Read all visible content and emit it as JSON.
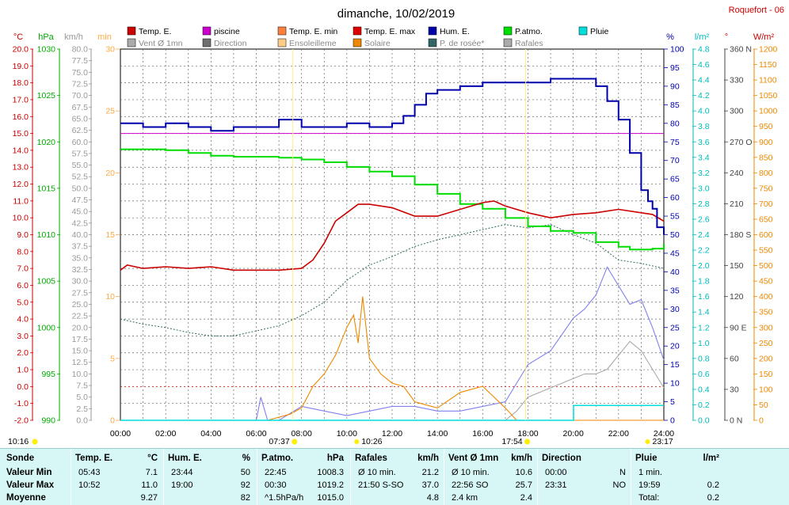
{
  "header": {
    "title": "dimanche, 10/02/2019",
    "station": "Roquefort - 06"
  },
  "colors": {
    "temp": "#cc0000",
    "piscine": "#cc00cc",
    "temp_min": "#ff7f3f",
    "temp_max": "#dd0000",
    "hum": "#0000aa",
    "patm": "#00dd00",
    "pluie": "#00dddd",
    "vent": "#aaaaaa",
    "direction": "#707070",
    "ensoleillement": "#ffcc88",
    "solaire": "#ee8800",
    "rosee": "#336666",
    "rafales": "#8080ee"
  },
  "legend": [
    {
      "label": "Temp. E.",
      "color": "#cc0000"
    },
    {
      "label": "piscine",
      "color": "#cc00cc"
    },
    {
      "label": "Temp. E. min",
      "color": "#ff7f3f"
    },
    {
      "label": "Temp. E. max",
      "color": "#dd0000"
    },
    {
      "label": "Hum. E.",
      "color": "#0000aa"
    },
    {
      "label": "P.atmo.",
      "color": "#00dd00"
    },
    {
      "label": "Pluie",
      "color": "#00dddd"
    },
    {
      "label": "Vent Ø 1mn",
      "color": "#aaaaaa"
    },
    {
      "label": "Direction",
      "color": "#707070"
    },
    {
      "label": "Ensoleilleme",
      "color": "#ffcc88"
    },
    {
      "label": "Solaire",
      "color": "#ee8800"
    },
    {
      "label": "P. de rosée*",
      "color": "#336666"
    },
    {
      "label": "Rafales",
      "color": "#aaaaaa"
    }
  ],
  "chart_data": {
    "type": "line",
    "x_ticks": [
      "00:00",
      "02:00",
      "04:00",
      "06:00",
      "08:00",
      "10:00",
      "12:00",
      "14:00",
      "16:00",
      "18:00",
      "20:00",
      "22:00",
      "24:00"
    ],
    "axes": {
      "temp": {
        "unit": "°C",
        "ticks": [
          "20.0",
          "19.0",
          "18.0",
          "17.0",
          "16.0",
          "15.0",
          "14.0",
          "13.0",
          "12.0",
          "11.0",
          "10.0",
          "9.0",
          "8.0",
          "7.0",
          "6.0",
          "5.0",
          "4.0",
          "3.0",
          "2.0",
          "1.0",
          "0.0",
          "-1.0",
          "-2.0"
        ],
        "ylim": [
          -2,
          20
        ]
      },
      "patm": {
        "unit": "hPa",
        "ticks": [
          "1030",
          "1025",
          "1020",
          "1015",
          "1010",
          "1005",
          "1000",
          "995",
          "990"
        ],
        "ylim": [
          990,
          1030
        ]
      },
      "wind": {
        "unit": "km/h",
        "ticks": [
          "80.0",
          "77.5",
          "75.0",
          "72.5",
          "70.0",
          "67.5",
          "65.0",
          "62.5",
          "60.0",
          "57.5",
          "55.0",
          "52.5",
          "50.0",
          "47.5",
          "45.0",
          "42.5",
          "40.0",
          "37.5",
          "35.0",
          "32.5",
          "30.0",
          "27.5",
          "25.0",
          "22.5",
          "20.0",
          "17.5",
          "15.0",
          "12.5",
          "10.0",
          "7.5",
          "5.0",
          "2.5",
          "0.0"
        ],
        "ylim": [
          0,
          80
        ]
      },
      "min": {
        "unit": "min",
        "ticks": [
          "30",
          "25",
          "20",
          "15",
          "10",
          "5",
          "0"
        ],
        "ylim": [
          0,
          30
        ]
      },
      "hum": {
        "unit": "%",
        "ticks": [
          "100",
          "95",
          "90",
          "85",
          "80",
          "75",
          "70",
          "65",
          "60",
          "55",
          "50",
          "45",
          "40",
          "35",
          "30",
          "25",
          "20",
          "15",
          "10",
          "5",
          "0"
        ],
        "ylim": [
          0,
          100
        ]
      },
      "rain": {
        "unit": "l/m²",
        "ticks": [
          "4.8",
          "4.6",
          "4.4",
          "4.2",
          "4.0",
          "3.8",
          "3.6",
          "3.4",
          "3.2",
          "3.0",
          "2.8",
          "2.6",
          "2.4",
          "2.2",
          "2.0",
          "1.8",
          "1.6",
          "1.4",
          "1.2",
          "1.0",
          "0.8",
          "0.6",
          "0.4",
          "0.2",
          "0.0"
        ],
        "ylim": [
          0,
          5
        ]
      },
      "dir": {
        "unit": "°",
        "ticks": [
          "360 N",
          "330",
          "300",
          "270 O",
          "240",
          "210",
          "180 S",
          "150",
          "120",
          "90 E",
          "60",
          "30",
          "0 N"
        ],
        "ylim": [
          0,
          360
        ]
      },
      "solar": {
        "unit": "W/m²",
        "ticks": [
          "1200",
          "1150",
          "1100",
          "1050",
          "1000",
          "950",
          "900",
          "850",
          "800",
          "750",
          "700",
          "650",
          "600",
          "550",
          "500",
          "450",
          "400",
          "350",
          "300",
          "250",
          "200",
          "150",
          "100",
          "50",
          "0"
        ],
        "ylim": [
          0,
          1200
        ]
      }
    },
    "series": [
      {
        "name": "Temp. E.",
        "x": [
          0,
          0.3,
          1,
          2,
          3,
          4,
          5,
          6,
          7,
          8,
          8.5,
          9,
          9.5,
          10,
          10.5,
          11,
          12,
          13,
          14,
          15,
          16,
          16.5,
          17,
          18,
          19,
          20,
          21,
          22,
          23,
          23.5,
          24
        ],
        "y": [
          6.9,
          7.2,
          7.0,
          7.1,
          7.0,
          7.1,
          6.9,
          6.9,
          6.9,
          7.0,
          7.5,
          8.5,
          9.8,
          10.3,
          10.8,
          10.8,
          10.6,
          10.1,
          10.1,
          10.5,
          10.9,
          11.0,
          10.7,
          10.3,
          10.0,
          10.2,
          10.3,
          10.5,
          10.3,
          10.2,
          9.8
        ]
      },
      {
        "name": "Hum. E.",
        "x": [
          0,
          1,
          2,
          3,
          4,
          5,
          6,
          7,
          8,
          9,
          10,
          11,
          11.5,
          12,
          12.5,
          13,
          13.5,
          14,
          15,
          16,
          17,
          18,
          19,
          20,
          21,
          21.5,
          22,
          22.5,
          23,
          23.3,
          23.5,
          23.7,
          24
        ],
        "y": [
          80,
          79,
          80,
          79,
          78,
          79,
          79,
          81,
          79,
          79,
          80,
          79,
          79,
          80,
          82,
          85,
          88,
          89,
          90,
          91,
          91,
          91,
          92,
          92,
          90,
          86,
          81,
          72,
          62,
          59,
          57,
          52,
          50
        ]
      },
      {
        "name": "P.atmo.",
        "x": [
          0,
          1,
          2,
          3,
          4,
          5,
          6,
          7,
          8,
          9,
          10,
          11,
          12,
          13,
          14,
          15,
          16,
          17,
          18,
          19,
          20,
          21,
          22,
          22.5,
          23,
          23.5,
          24
        ],
        "y": [
          1019.2,
          1019.2,
          1019.1,
          1018.8,
          1018.5,
          1018.4,
          1018.4,
          1018.3,
          1018.1,
          1017.8,
          1017.3,
          1016.8,
          1016.3,
          1015.4,
          1014.4,
          1013.3,
          1012.8,
          1011.8,
          1010.9,
          1010.4,
          1010.2,
          1009.2,
          1008.7,
          1008.4,
          1008.4,
          1008.5,
          1009.0
        ]
      },
      {
        "name": "P. de rosée*",
        "x": [
          0,
          1,
          2,
          3,
          4,
          5,
          6,
          7,
          8,
          9,
          10,
          11,
          12,
          13,
          14,
          15,
          16,
          17,
          18,
          19,
          20,
          21,
          22,
          23,
          24
        ],
        "y": [
          4.0,
          3.7,
          3.5,
          3.2,
          3.0,
          3.0,
          3.3,
          3.6,
          4.2,
          5.0,
          6.3,
          7.2,
          7.7,
          8.3,
          8.7,
          9.0,
          9.3,
          9.6,
          9.4,
          9.6,
          9.0,
          8.5,
          7.5,
          7.3,
          7.0
        ]
      },
      {
        "name": "Solaire",
        "x": [
          0,
          6.5,
          7.5,
          8,
          8.5,
          9,
          9.5,
          10,
          10.3,
          10.5,
          10.7,
          11,
          11.5,
          12,
          12.5,
          13,
          14,
          15,
          16,
          17,
          17.5,
          18,
          24
        ],
        "y": [
          0,
          0,
          20,
          40,
          110,
          150,
          210,
          300,
          340,
          250,
          400,
          200,
          150,
          120,
          110,
          60,
          40,
          90,
          110,
          40,
          0,
          0,
          0
        ]
      },
      {
        "name": "Rafales",
        "x": [
          0,
          6,
          6.2,
          6.5,
          7,
          8,
          9,
          10,
          11,
          12,
          13,
          14,
          15,
          16,
          17,
          17.5,
          18,
          19,
          20,
          20.5,
          21,
          21.5,
          22,
          22.5,
          23,
          23.5,
          24
        ],
        "y": [
          0,
          0,
          5,
          0,
          0,
          3,
          2,
          1,
          2,
          3,
          3,
          2,
          2,
          3,
          4,
          8,
          12,
          15,
          22,
          24,
          27,
          33,
          29,
          25,
          26,
          20,
          13
        ]
      },
      {
        "name": "Vent Ø 1mn",
        "x": [
          0,
          17,
          17.5,
          18,
          19,
          20,
          20.5,
          21,
          21.5,
          22,
          22.5,
          23,
          23.5,
          24
        ],
        "y": [
          0,
          0,
          2,
          5,
          7,
          9,
          10,
          10,
          11,
          14,
          17,
          15,
          11,
          7
        ]
      },
      {
        "name": "Pluie",
        "x": [
          0,
          20,
          20.01,
          24
        ],
        "y": [
          0,
          0,
          0.2,
          0.2
        ]
      },
      {
        "name": "piscine",
        "x": [
          0,
          24
        ],
        "y": [
          15.0,
          15.0
        ]
      }
    ],
    "markers": {
      "sunrise": "07:37",
      "sunset": "17:54",
      "moonrise": "10:26",
      "moonset": "23:17",
      "left_time": "10:16",
      "day_length": "<10:16 ... 10:26 ... 23:17"
    }
  },
  "summary": {
    "columns": [
      {
        "title": "Sonde",
        "rows": [
          "Valeur Min",
          "Valeur Max",
          "Moyenne"
        ]
      },
      {
        "title": "Temp. E.",
        "unit": "°C",
        "rows": [
          [
            "05:43",
            "7.1"
          ],
          [
            "10:52",
            "11.0"
          ],
          [
            "",
            "9.27"
          ]
        ]
      },
      {
        "title": "Hum. E.",
        "unit": "%",
        "rows": [
          [
            "23:44",
            "50"
          ],
          [
            "19:00",
            "92"
          ],
          [
            "",
            "82"
          ]
        ]
      },
      {
        "title": "P.atmo.",
        "unit": "hPa",
        "rows": [
          [
            "22:45",
            "1008.3"
          ],
          [
            "00:30",
            "1019.2"
          ],
          [
            "^1.5hPa/h",
            "1015.0"
          ]
        ]
      },
      {
        "title": "Rafales",
        "unit": "km/h",
        "rows": [
          [
            "Ø 10 min.",
            "21.2"
          ],
          [
            "21:50   S-SO",
            "37.0"
          ],
          [
            "",
            "4.8"
          ]
        ]
      },
      {
        "title": "Vent Ø 1mn",
        "unit": "km/h",
        "rows": [
          [
            "Ø 10 min.",
            "10.6"
          ],
          [
            "22:56   SO",
            "25.7"
          ],
          [
            "2.4 km",
            "2.4"
          ]
        ]
      },
      {
        "title": "Direction",
        "unit": "",
        "rows": [
          [
            "00:00",
            "N"
          ],
          [
            "23:31",
            "NO"
          ],
          [
            "",
            ""
          ]
        ]
      },
      {
        "title": "Pluie",
        "unit": "l/m²",
        "rows": [
          [
            "1 min.",
            ""
          ],
          [
            "19:59",
            "0.2"
          ],
          [
            "Total:",
            "0.2"
          ]
        ]
      }
    ]
  }
}
